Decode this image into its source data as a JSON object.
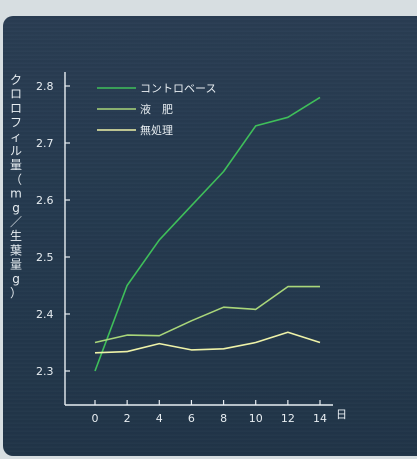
{
  "chart_data": {
    "type": "line",
    "x": [
      0,
      2,
      4,
      6,
      8,
      10,
      12,
      14
    ],
    "xlabel": "日",
    "ylabel": "クロロフィル量（mg／生葉量g）",
    "ylim": [
      2.3,
      2.8
    ],
    "yticks": [
      "2.3",
      "2.4",
      "2.5",
      "2.6",
      "2.7",
      "2.8"
    ],
    "xticks": [
      "0",
      "2",
      "4",
      "6",
      "8",
      "10",
      "12",
      "14"
    ],
    "grid": false,
    "legend_position": "top-left",
    "series": [
      {
        "name": "コントロベース",
        "color": "#3fbf5a",
        "values": [
          2.3,
          2.45,
          2.53,
          2.59,
          2.65,
          2.73,
          2.745,
          2.78
        ]
      },
      {
        "name": "液　肥",
        "color": "#a9d67a",
        "values": [
          2.35,
          2.363,
          2.362,
          2.388,
          2.412,
          2.408,
          2.448,
          2.448
        ]
      },
      {
        "name": "無処理",
        "color": "#eef2a8",
        "values": [
          2.332,
          2.334,
          2.348,
          2.337,
          2.339,
          2.35,
          2.368,
          2.35
        ]
      }
    ]
  }
}
